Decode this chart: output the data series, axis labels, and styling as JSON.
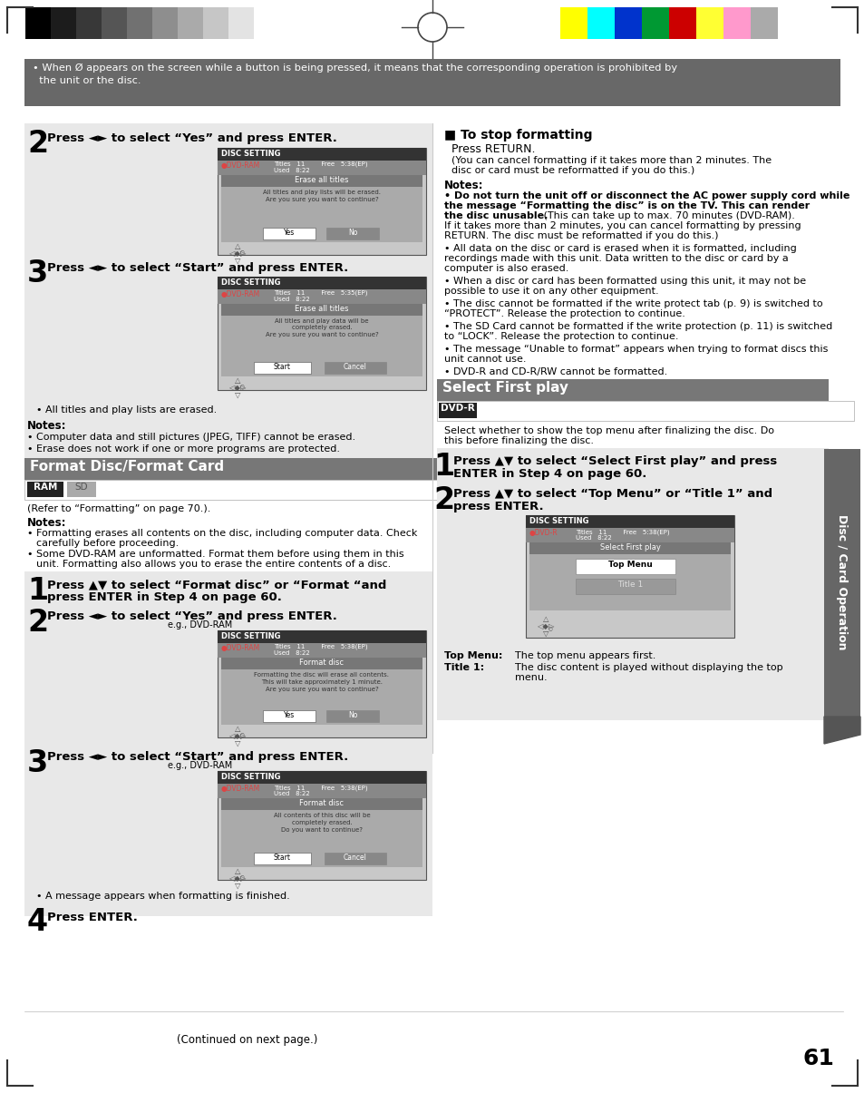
{
  "bg_color": "#ffffff",
  "header_note_text": "• When Ø appears on the screen while a button is being pressed, it means that the corresponding operation is prohibited by\n  the unit or the disc.",
  "section_left_title": "Format Disc/Format Card",
  "section_right_title": "Select First play",
  "badge_ram_text": "RAM",
  "badge_sd_text": "SD",
  "badge_dvdr_text": "DVD-R",
  "side_tab_text": "Disc / Card Operation",
  "page_number": "61",
  "continued_text": "(Continued on next page.)"
}
